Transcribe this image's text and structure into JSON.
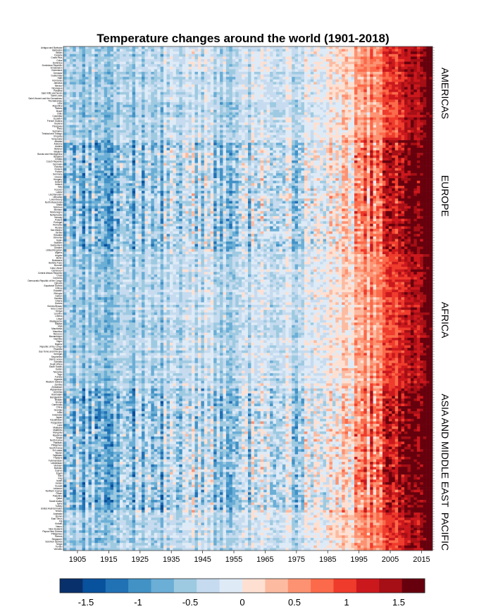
{
  "chart_data": {
    "type": "heatmap",
    "title": "Temperature changes around the world (1901-2018)",
    "x_start": 1901,
    "x_end": 2018,
    "x_ticks": [
      "1905",
      "1915",
      "1925",
      "1935",
      "1945",
      "1955",
      "1965",
      "1975",
      "1985",
      "1995",
      "2005",
      "2015"
    ],
    "regions": [
      {
        "name": "AMERICAS",
        "profile": "mild",
        "countries": [
          "Antigua and Barbuda",
          "Barbados",
          "Belize",
          "Canada",
          "Costa Rica",
          "Cuba",
          "Dominica",
          "Dominican Republic",
          "El Salvador",
          "Greenland",
          "Grenada",
          "Guatemala",
          "Haiti",
          "Honduras",
          "Jamaica",
          "Mexico",
          "Nicaragua",
          "Panama",
          "Saint Kitts and Nevis",
          "Saint Lucia",
          "Saint Vincent and the Grenadines",
          "The Bahamas",
          "USA",
          "Argentina",
          "Bolivia",
          "Brazil",
          "Chile",
          "Colombia",
          "Ecuador",
          "French Guiana",
          "Guyana",
          "Paraguay",
          "Peru",
          "Suriname",
          "Trinidad and Tobago",
          "Uruguay",
          "Venezuela"
        ]
      },
      {
        "name": "EUROPE",
        "profile": "strong",
        "countries": [
          "Albania",
          "Andorra",
          "Austria",
          "Belarus",
          "Belgium",
          "Bosnia and Herzegovina",
          "Bulgaria",
          "Croatia",
          "Czech Republic",
          "Denmark",
          "Estonia",
          "Finland",
          "France",
          "Germany",
          "Greece",
          "Hungary",
          "Iceland",
          "Ireland",
          "Italy",
          "Kosovo",
          "Latvia",
          "Liechtenstein",
          "Lithuania",
          "Luxembourg",
          "North Macedonia",
          "Malta",
          "Moldova",
          "Monaco",
          "Montenegro",
          "Netherlands",
          "Norway",
          "Poland",
          "Portugal",
          "Romania",
          "Russia",
          "San Marino",
          "Serbia",
          "Slovakia",
          "Slovenia",
          "Spain",
          "Sweden",
          "Switzerland",
          "Ukraine",
          "United Kingdom"
        ]
      },
      {
        "name": "AFRICA",
        "profile": "mild",
        "countries": [
          "Algeria",
          "Angola",
          "Benin",
          "Botswana",
          "Burkina Faso",
          "Burundi",
          "Cabo Verde",
          "Cameroon",
          "Central African Republic",
          "Chad",
          "Comoros",
          "Democratic Republic of the Congo",
          "Djibouti",
          "Equatorial Guinea",
          "Eritrea",
          "Eswatini",
          "Ethiopia",
          "Gabon",
          "Gambia",
          "Ghana",
          "Guinea",
          "Guinea-Bissau",
          "Ivory Coast",
          "Kenya",
          "Lesotho",
          "Liberia",
          "Libya",
          "Madagascar",
          "Malawi",
          "Mali",
          "Mauritania",
          "Mauritius",
          "Morocco",
          "Mozambique",
          "Namibia",
          "Niger",
          "Nigeria",
          "Republic of the Congo",
          "Rwanda",
          "Sao Tome and Principe",
          "Senegal",
          "Seychelles",
          "Sierra Leone",
          "Somalia",
          "South Africa",
          "South Sudan",
          "Sudan",
          "Tanzania",
          "Togo",
          "Tunisia",
          "Uganda",
          "Western Sahara",
          "Zambia",
          "Zimbabwe"
        ]
      },
      {
        "name": "ASIA AND MIDDLE EAST",
        "profile": "strong",
        "countries": [
          "Afghanistan",
          "Armenia",
          "Azerbaijan",
          "Bangladesh",
          "Bhutan",
          "Brunei",
          "Cambodia",
          "China",
          "Georgia",
          "India",
          "Indonesia",
          "Japan",
          "Kazakhstan",
          "Kyrgyzstan",
          "Laos",
          "Malaysia",
          "Maldives",
          "Mongolia",
          "Myanmar",
          "Nepal",
          "North Korea",
          "Pakistan",
          "Philippines",
          "South Korea",
          "Sri Lanka",
          "Taiwan",
          "Tajikistan",
          "Thailand",
          "Turkmenistan",
          "Uzbekistan",
          "Vietnam",
          "Bahrain",
          "Cyprus",
          "Egypt",
          "Iran",
          "Iraq",
          "Israel",
          "Jordan",
          "Kuwait",
          "Lebanon",
          "Northern Cyprus",
          "Oman",
          "Palestine",
          "Qatar",
          "Saudi Arabia",
          "Syria",
          "Turkey",
          "United Arab Emirates",
          "Yemen"
        ]
      },
      {
        "name": "PACIFIC",
        "profile": "mild",
        "countries": [
          "Australia",
          "Brunei",
          "East Timor",
          "Fiji",
          "Kiribati",
          "Nauru",
          "New Zealand",
          "Papua New Guinea",
          "Philippines",
          "Samoa",
          "Singapore",
          "Solomon Islands",
          "Tonga",
          "Tuvalu",
          "Vanuatu"
        ]
      }
    ],
    "colorbar": {
      "min": -1.75,
      "max": 1.75,
      "colors": [
        "#08306b",
        "#08519c",
        "#2171b5",
        "#4292c6",
        "#6baed6",
        "#9ecae1",
        "#c6dbef",
        "#deebf7",
        "#fee0d2",
        "#fcbba1",
        "#fc9272",
        "#fb6a4a",
        "#ef3b2c",
        "#cb181d",
        "#a50f15",
        "#67000d"
      ],
      "tick_labels": [
        "-1.5",
        "-1",
        "-0.5",
        "0",
        "0.5",
        "1",
        "1.5"
      ],
      "tick_values": [
        -1.5,
        -1,
        -0.5,
        0,
        0.5,
        1,
        1.5
      ]
    }
  }
}
